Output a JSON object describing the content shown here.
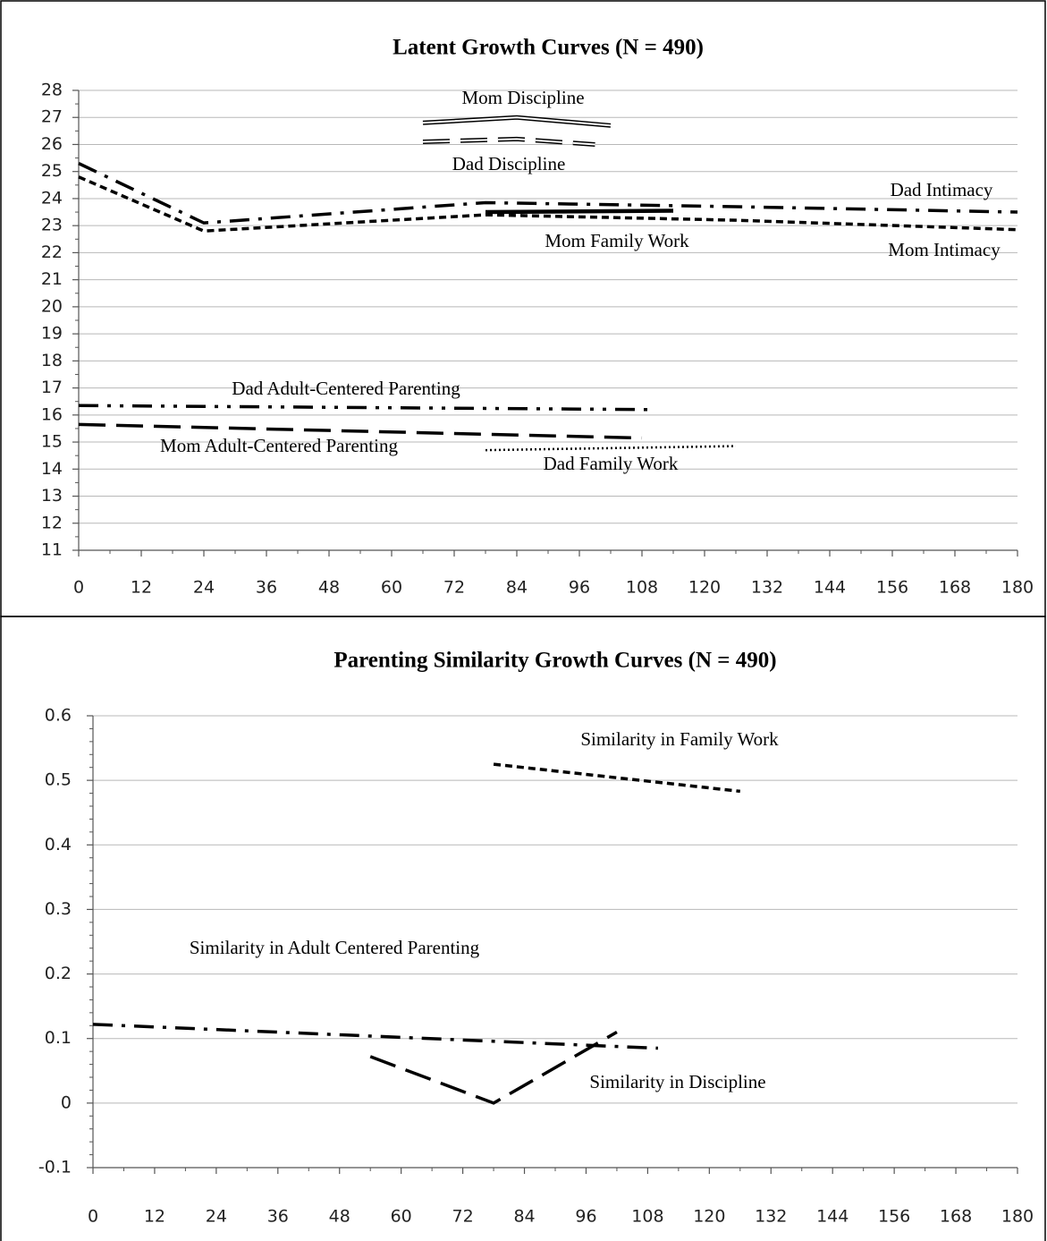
{
  "chart_data": [
    {
      "type": "line",
      "title": "Latent Growth Curves (N = 490)",
      "xlim": [
        0,
        180
      ],
      "xticks": [
        0,
        12,
        24,
        36,
        48,
        60,
        72,
        84,
        96,
        108,
        120,
        132,
        144,
        156,
        168,
        180
      ],
      "ylim": [
        11,
        28
      ],
      "yticks": [
        11,
        12,
        13,
        14,
        15,
        16,
        17,
        18,
        19,
        20,
        21,
        22,
        23,
        24,
        25,
        26,
        27,
        28
      ],
      "grid": true,
      "series": [
        {
          "name": "Mom Discipline",
          "style": "double",
          "color": "#000000",
          "x": [
            66,
            84,
            102
          ],
          "values": [
            26.8,
            27.0,
            26.7
          ]
        },
        {
          "name": "Dad Discipline",
          "style": "double-dash",
          "color": "#000000",
          "x": [
            66,
            84,
            99
          ],
          "values": [
            26.1,
            26.2,
            26.0
          ]
        },
        {
          "name": "Dad Intimacy",
          "style": "dash-dot",
          "color": "#000000",
          "x": [
            0,
            24,
            78,
            126,
            180
          ],
          "values": [
            25.3,
            23.1,
            23.85,
            23.7,
            23.5
          ]
        },
        {
          "name": "Mom Intimacy",
          "style": "dash",
          "color": "#000000",
          "x": [
            0,
            24,
            78,
            126,
            180
          ],
          "values": [
            24.8,
            22.8,
            23.4,
            23.2,
            22.85
          ]
        },
        {
          "name": "Mom Family Work",
          "style": "solid",
          "color": "#000000",
          "x": [
            78,
            114
          ],
          "values": [
            23.5,
            23.55
          ]
        },
        {
          "name": "Dad Adult-Centered Parenting",
          "style": "dash-dot-dot",
          "color": "#000000",
          "x": [
            0,
            110
          ],
          "values": [
            16.35,
            16.2
          ]
        },
        {
          "name": "Mom Adult-Centered Parenting",
          "style": "long-dash",
          "color": "#000000",
          "x": [
            0,
            108
          ],
          "values": [
            15.65,
            15.15
          ]
        },
        {
          "name": "Dad Family Work",
          "style": "dot",
          "color": "#000000",
          "x": [
            78,
            126
          ],
          "values": [
            14.7,
            14.85
          ]
        }
      ]
    },
    {
      "type": "line",
      "title": "Parenting Similarity Growth Curves (N = 490)",
      "xlim": [
        0,
        180
      ],
      "xticks": [
        0,
        12,
        24,
        36,
        48,
        60,
        72,
        84,
        96,
        108,
        120,
        132,
        144,
        156,
        168,
        180
      ],
      "ylim": [
        -0.1,
        0.6
      ],
      "yticks": [
        -0.1,
        0,
        0.1,
        0.2,
        0.3,
        0.4,
        0.5,
        0.6
      ],
      "grid": true,
      "series": [
        {
          "name": "Similarity in Family Work",
          "style": "dash",
          "color": "#000000",
          "x": [
            78,
            126
          ],
          "values": [
            0.525,
            0.483
          ]
        },
        {
          "name": "Similarity in Adult Centered Parenting",
          "style": "dash-dot",
          "color": "#000000",
          "x": [
            0,
            110
          ],
          "values": [
            0.122,
            0.085
          ]
        },
        {
          "name": "Similarity in Discipline",
          "style": "long-dash",
          "color": "#000000",
          "x": [
            54,
            78,
            102
          ],
          "values": [
            0.072,
            0.0,
            0.11
          ]
        }
      ]
    }
  ]
}
